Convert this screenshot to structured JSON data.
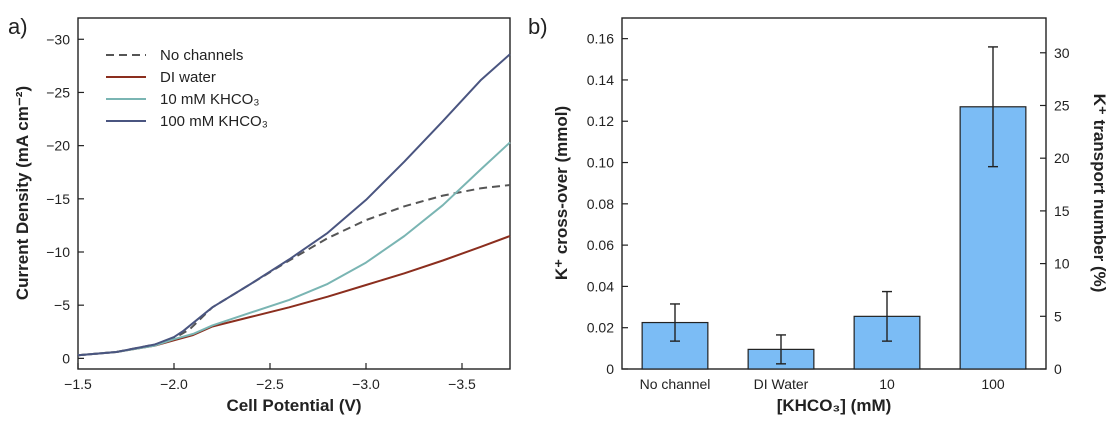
{
  "figure": {
    "panel_a_label": "a)",
    "panel_b_label": "b)"
  },
  "chart_data": [
    {
      "type": "line",
      "panel": "a)",
      "xlabel": "Cell Potential (V)",
      "ylabel": "Current Density (mA cm⁻²)",
      "xlim": [
        -1.5,
        -3.75
      ],
      "ylim": [
        1,
        -32
      ],
      "x_ticks": [
        -1.5,
        -2.0,
        -2.5,
        -3.0,
        -3.5
      ],
      "x_tick_labels": [
        "−1.5",
        "−2.0",
        "−2.5",
        "−3.0",
        "−3.5"
      ],
      "y_ticks": [
        0,
        -5,
        -10,
        -15,
        -20,
        -25,
        -30
      ],
      "y_tick_labels": [
        "0",
        "−5",
        "−10",
        "−15",
        "−20",
        "−25",
        "−30"
      ],
      "grid": false,
      "legend": "top-left",
      "series": [
        {
          "name": "No channels",
          "color": "#555555",
          "dash": true,
          "x": [
            -1.5,
            -1.7,
            -1.9,
            -2.0,
            -2.08,
            -2.2,
            -2.4,
            -2.6,
            -2.8,
            -3.0,
            -3.2,
            -3.4,
            -3.6,
            -3.75
          ],
          "y": [
            -0.3,
            -0.6,
            -1.3,
            -1.9,
            -2.7,
            -4.8,
            -7.0,
            -9.2,
            -11.3,
            -13.0,
            -14.3,
            -15.3,
            -16.0,
            -16.3
          ]
        },
        {
          "name": "DI water",
          "color": "#8b2e1e",
          "dash": false,
          "x": [
            -1.5,
            -1.7,
            -1.9,
            -2.0,
            -2.1,
            -2.2,
            -2.4,
            -2.6,
            -2.8,
            -3.0,
            -3.2,
            -3.4,
            -3.6,
            -3.75
          ],
          "y": [
            -0.3,
            -0.6,
            -1.2,
            -1.7,
            -2.2,
            -3.0,
            -3.9,
            -4.8,
            -5.8,
            -6.9,
            -8.0,
            -9.2,
            -10.5,
            -11.5
          ]
        },
        {
          "name": "10 mM KHCO₃",
          "color": "#7ab5b3",
          "dash": false,
          "x": [
            -1.5,
            -1.7,
            -1.9,
            -2.0,
            -2.1,
            -2.2,
            -2.4,
            -2.6,
            -2.8,
            -3.0,
            -3.2,
            -3.4,
            -3.6,
            -3.75
          ],
          "y": [
            -0.3,
            -0.6,
            -1.2,
            -1.8,
            -2.3,
            -3.1,
            -4.3,
            -5.5,
            -7.0,
            -9.0,
            -11.5,
            -14.4,
            -17.8,
            -20.3
          ]
        },
        {
          "name": "100 mM KHCO₃",
          "color": "#4a5580",
          "dash": false,
          "x": [
            -1.5,
            -1.7,
            -1.9,
            -2.0,
            -2.05,
            -2.2,
            -2.4,
            -2.6,
            -2.8,
            -3.0,
            -3.2,
            -3.4,
            -3.6,
            -3.75
          ],
          "y": [
            -0.3,
            -0.6,
            -1.3,
            -2.0,
            -2.6,
            -4.8,
            -7.0,
            -9.3,
            -11.8,
            -14.9,
            -18.5,
            -22.3,
            -26.2,
            -28.6
          ]
        }
      ]
    },
    {
      "type": "bar",
      "panel": "b)",
      "xlabel": "[KHCO₃] (mM)",
      "ylabel": "K⁺ cross-over (mmol)",
      "y2label": "K⁺ transport number (%)",
      "categories": [
        "No channel",
        "DI Water",
        "10",
        "100"
      ],
      "values": [
        0.0225,
        0.0095,
        0.0255,
        0.127
      ],
      "errors": [
        0.009,
        0.007,
        0.012,
        0.029
      ],
      "bar_color": "#7bbcf5",
      "ylim": [
        0,
        0.17
      ],
      "y_ticks": [
        0,
        0.02,
        0.04,
        0.06,
        0.08,
        0.1,
        0.12,
        0.14,
        0.16
      ],
      "y_tick_labels": [
        "0",
        "0.02",
        "0.04",
        "0.06",
        "0.08",
        "0.10",
        "0.12",
        "0.14",
        "0.16"
      ],
      "y2lim": [
        0,
        33.3
      ],
      "y2_ticks": [
        0,
        5,
        10,
        15,
        20,
        25,
        30
      ],
      "y2_tick_labels": [
        "0",
        "5",
        "10",
        "15",
        "20",
        "25",
        "30"
      ],
      "grid": false
    }
  ]
}
